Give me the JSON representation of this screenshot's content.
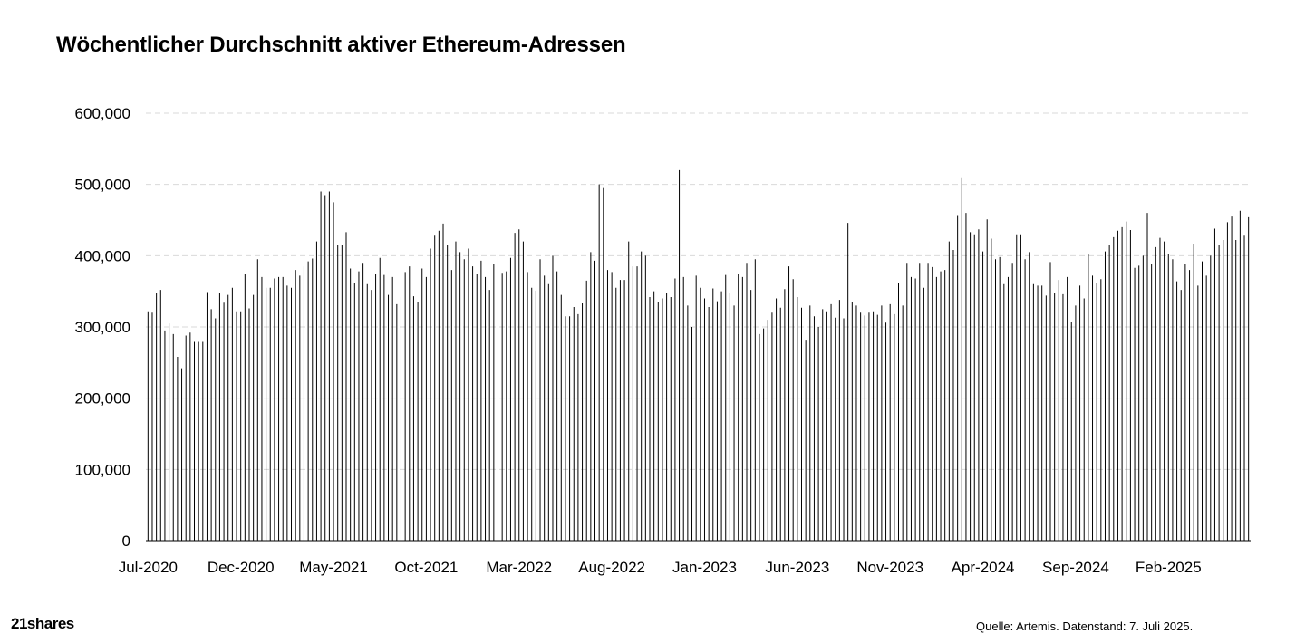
{
  "title": "Wöchentlicher Durchschnitt aktiver Ethereum-Adressen",
  "source": "Quelle: Artemis. Datenstand: 7. Juli 2025.",
  "logo": "21shares",
  "colors": {
    "bar": "#000000",
    "grid": "#d9d9d9",
    "text": "#000000"
  },
  "chart_data": {
    "type": "bar",
    "title": "Wöchentlicher Durchschnitt aktiver Ethereum-Adressen",
    "xlabel": "",
    "ylabel": "",
    "ylim": [
      0,
      600000
    ],
    "y_ticks": [
      0,
      100000,
      200000,
      300000,
      400000,
      500000,
      600000
    ],
    "y_tick_labels": [
      "0",
      "100,000",
      "200,000",
      "300,000",
      "400,000",
      "500,000",
      "600,000"
    ],
    "x_tick_labels": [
      "Jul-2020",
      "Dec-2020",
      "May-2021",
      "Oct-2021",
      "Mar-2022",
      "Aug-2022",
      "Jan-2023",
      "Jun-2023",
      "Nov-2023",
      "Apr-2024",
      "Sep-2024",
      "Feb-2025"
    ],
    "x_tick_indices": [
      0,
      22,
      44,
      66,
      88,
      110,
      132,
      154,
      176,
      198,
      220,
      242
    ],
    "grid": true,
    "legend": "none",
    "values": [
      322000,
      320000,
      347000,
      352000,
      295000,
      305000,
      290000,
      258000,
      242000,
      288000,
      292000,
      279000,
      279000,
      279000,
      349000,
      325000,
      312000,
      347000,
      334000,
      345000,
      355000,
      322000,
      322000,
      375000,
      326000,
      345000,
      395000,
      370000,
      355000,
      355000,
      368000,
      370000,
      370000,
      358000,
      355000,
      380000,
      372000,
      385000,
      392000,
      396000,
      420000,
      490000,
      485000,
      490000,
      475000,
      415000,
      415000,
      433000,
      382000,
      362000,
      378000,
      390000,
      360000,
      352000,
      375000,
      397000,
      373000,
      345000,
      370000,
      332000,
      342000,
      377000,
      385000,
      343000,
      335000,
      382000,
      370000,
      410000,
      428000,
      435000,
      445000,
      415000,
      380000,
      420000,
      405000,
      395000,
      410000,
      385000,
      375000,
      393000,
      370000,
      352000,
      388000,
      402000,
      376000,
      378000,
      397000,
      432000,
      437000,
      420000,
      377000,
      355000,
      351000,
      395000,
      372000,
      360000,
      400000,
      378000,
      345000,
      315000,
      315000,
      328000,
      318000,
      333000,
      365000,
      405000,
      393000,
      500000,
      495000,
      380000,
      377000,
      355000,
      366000,
      366000,
      420000,
      385000,
      385000,
      406000,
      400000,
      342000,
      350000,
      335000,
      340000,
      347000,
      342000,
      368000,
      520000,
      370000,
      330000,
      300000,
      372000,
      355000,
      340000,
      328000,
      354000,
      336000,
      350000,
      373000,
      348000,
      330000,
      375000,
      370000,
      390000,
      352000,
      395000,
      290000,
      298000,
      310000,
      320000,
      340000,
      327000,
      353000,
      385000,
      367000,
      342000,
      327000,
      282000,
      330000,
      315000,
      300000,
      325000,
      322000,
      332000,
      313000,
      338000,
      312000,
      446000,
      335000,
      330000,
      320000,
      316000,
      320000,
      322000,
      317000,
      330000,
      306000,
      332000,
      318000,
      362000,
      330000,
      390000,
      370000,
      368000,
      390000,
      355000,
      390000,
      384000,
      370000,
      378000,
      380000,
      420000,
      408000,
      457000,
      510000,
      460000,
      433000,
      430000,
      437000,
      406000,
      451000,
      424000,
      395000,
      398000,
      360000,
      370000,
      390000,
      430000,
      430000,
      395000,
      405000,
      360000,
      358000,
      358000,
      344000,
      391000,
      348000,
      366000,
      346000,
      370000,
      307000,
      330000,
      358000,
      340000,
      402000,
      372000,
      362000,
      367000,
      406000,
      415000,
      426000,
      435000,
      440000,
      448000,
      436000,
      383000,
      386000,
      400000,
      460000,
      388000,
      412000,
      425000,
      420000,
      402000,
      395000,
      364000,
      352000,
      389000,
      380000,
      417000,
      358000,
      392000,
      372000,
      400000,
      438000,
      415000,
      422000,
      447000,
      455000,
      422000,
      463000,
      428000,
      454000
    ]
  }
}
